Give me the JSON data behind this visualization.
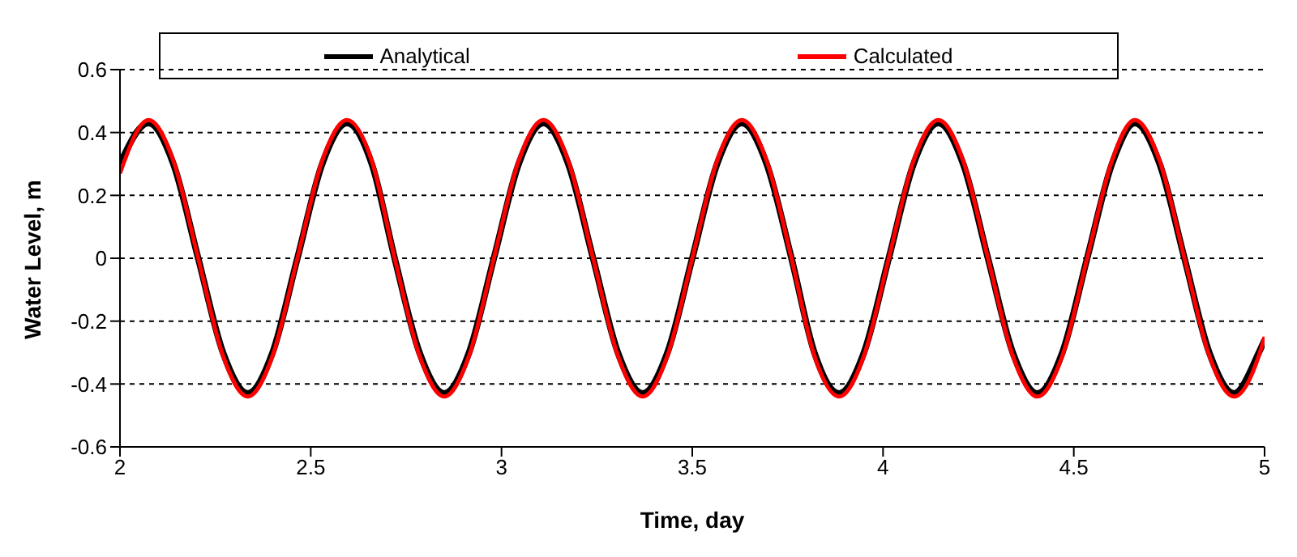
{
  "chart_data": {
    "type": "line",
    "xlabel": "Time, day",
    "ylabel": "Water Level, m",
    "x": [
      2.0,
      2.075,
      2.14,
      2.205,
      2.27,
      2.335,
      2.4,
      2.465,
      2.53,
      2.595,
      2.66,
      2.72,
      2.785,
      2.85,
      2.915,
      2.98,
      3.045,
      3.11,
      3.175,
      3.24,
      3.305,
      3.37,
      3.435,
      3.5,
      3.565,
      3.63,
      3.695,
      3.76,
      3.82,
      3.885,
      3.95,
      4.015,
      4.08,
      4.145,
      4.21,
      4.275,
      4.34,
      4.405,
      4.47,
      4.535,
      4.6,
      4.66,
      4.725,
      4.79,
      4.855,
      4.92,
      4.985,
      5.0
    ],
    "series": [
      {
        "name": "Analytical",
        "color": "#000000",
        "values": [
          0.3,
          0.43,
          0.3,
          0,
          -0.3,
          -0.43,
          -0.3,
          0,
          0.3,
          0.43,
          0.3,
          0,
          -0.3,
          -0.43,
          -0.3,
          0,
          0.3,
          0.43,
          0.3,
          0,
          -0.3,
          -0.43,
          -0.3,
          0,
          0.3,
          0.43,
          0.3,
          0,
          -0.3,
          -0.43,
          -0.3,
          0,
          0.3,
          0.43,
          0.3,
          0,
          -0.3,
          -0.43,
          -0.3,
          0,
          0.3,
          0.43,
          0.3,
          0,
          -0.3,
          -0.43,
          -0.3,
          -0.26
        ]
      },
      {
        "name": "Calculated",
        "color": "#ff0000",
        "values": [
          0.27,
          0.44,
          0.31,
          0,
          -0.31,
          -0.44,
          -0.31,
          0,
          0.31,
          0.44,
          0.31,
          0,
          -0.31,
          -0.44,
          -0.31,
          0,
          0.31,
          0.44,
          0.31,
          0,
          -0.31,
          -0.44,
          -0.31,
          0,
          0.31,
          0.44,
          0.31,
          0,
          -0.31,
          -0.44,
          -0.31,
          0,
          0.31,
          0.44,
          0.31,
          0,
          -0.31,
          -0.44,
          -0.31,
          0,
          0.31,
          0.44,
          0.31,
          0,
          -0.31,
          -0.44,
          -0.31,
          -0.25
        ]
      }
    ],
    "xlim": [
      2,
      5
    ],
    "xticks": [
      2,
      2.5,
      3,
      3.5,
      4,
      4.5,
      5
    ],
    "ylim": [
      -0.6,
      0.6
    ],
    "yticks": [
      -0.6,
      -0.4,
      -0.2,
      0,
      0.2,
      0.4,
      0.6
    ],
    "grid": "y",
    "legend": "top",
    "marker": "none",
    "line_style": "solid"
  }
}
